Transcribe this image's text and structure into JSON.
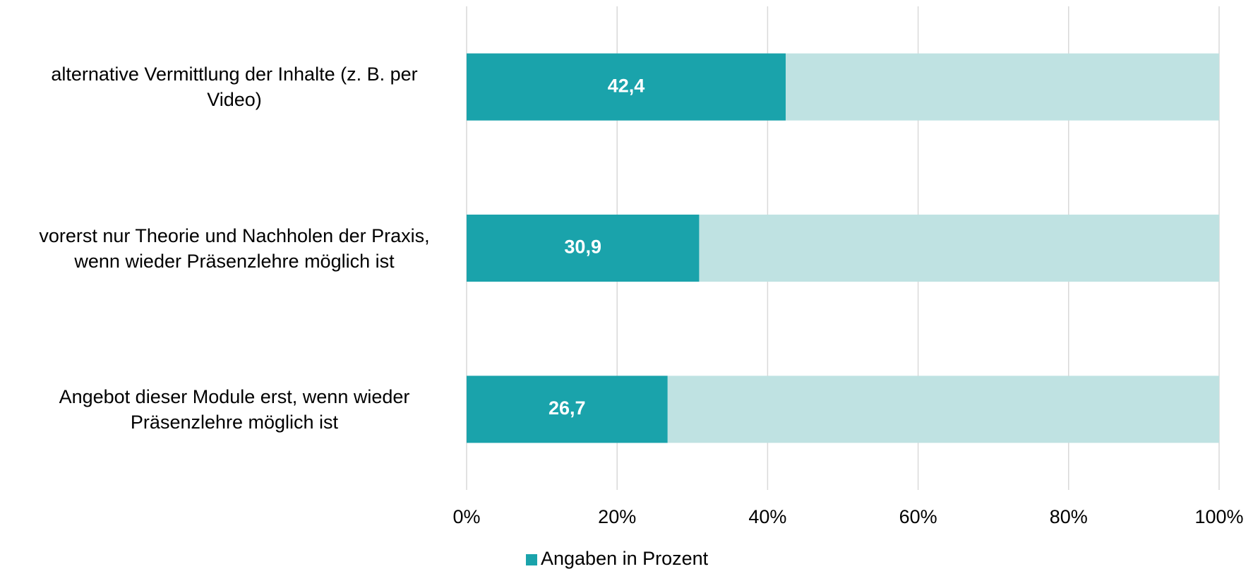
{
  "chart_data": {
    "type": "barh",
    "categories": [
      "alternative Vermittlung der Inhalte (z. B. per Video)",
      "vorerst nur Theorie und Nachholen der Praxis, wenn wieder Präsenzlehre möglich ist",
      "Angebot dieser Module erst, wenn wieder Präsenzlehre möglich ist"
    ],
    "series": [
      {
        "name": "Angaben in Prozent",
        "color": "#1aa3ab",
        "values": [
          42.4,
          30.9,
          26.7
        ],
        "value_labels": [
          "42,4",
          "30,9",
          "26,7"
        ]
      }
    ],
    "track_color": "#bfe2e2",
    "xlim": [
      0,
      100
    ],
    "xticks": [
      {
        "value": 0,
        "label": "0%"
      },
      {
        "value": 20,
        "label": "20%"
      },
      {
        "value": 40,
        "label": "40%"
      },
      {
        "value": 60,
        "label": "60%"
      },
      {
        "value": 80,
        "label": "80%"
      },
      {
        "value": 100,
        "label": "100%"
      }
    ],
    "grid": true,
    "legend": "bottom"
  }
}
